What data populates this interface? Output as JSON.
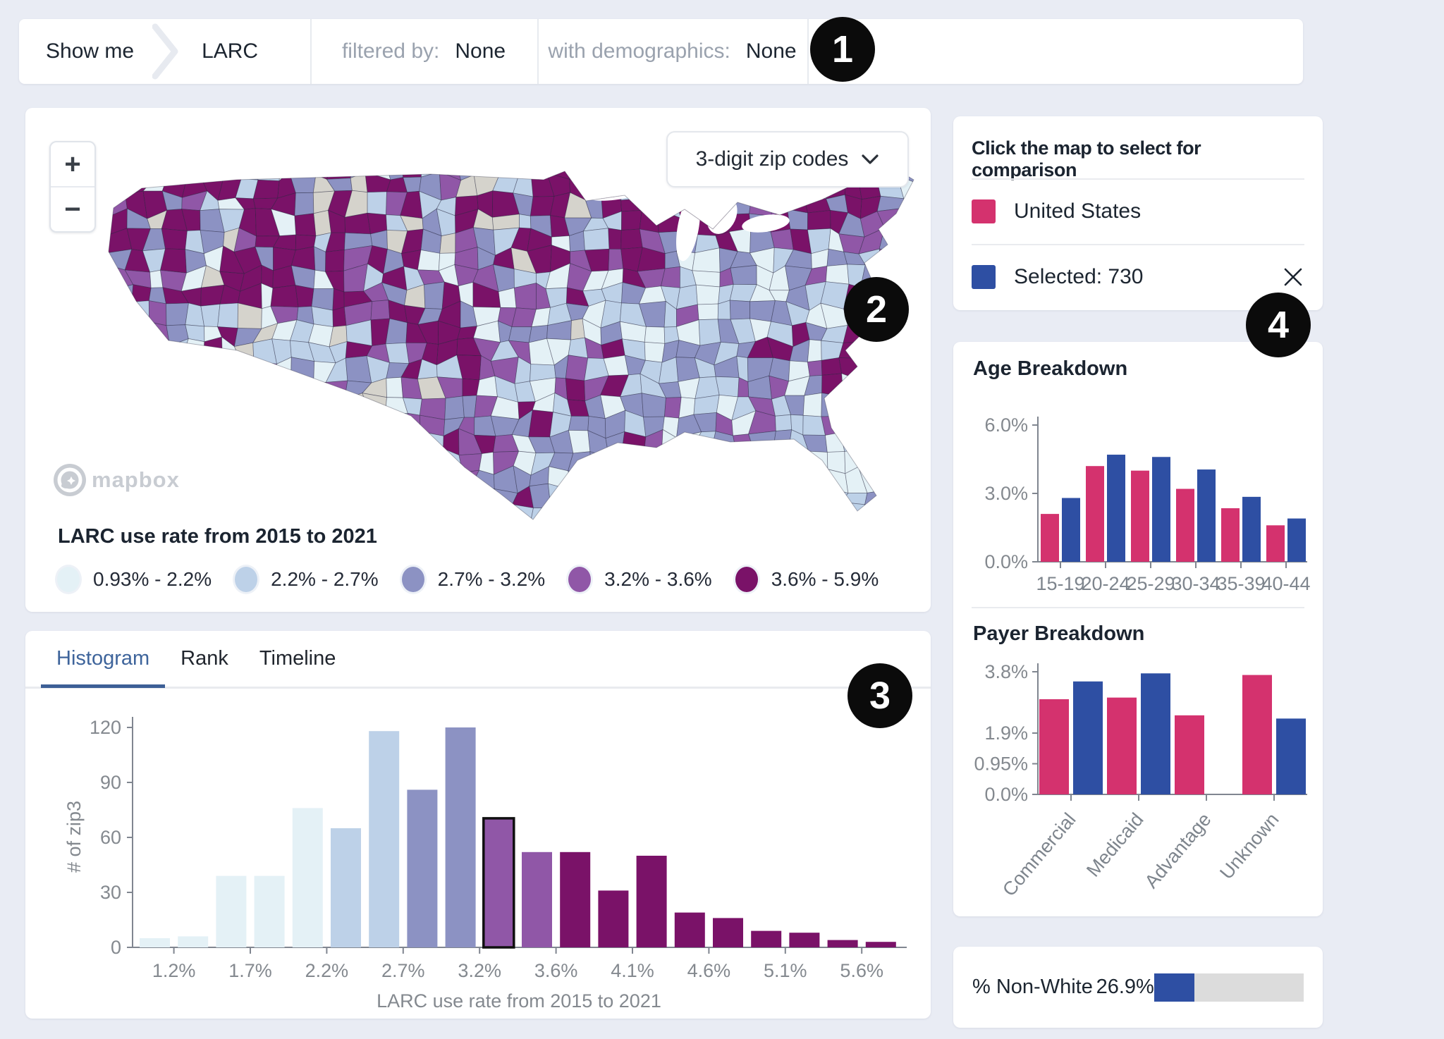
{
  "colors": {
    "background": "#E9ECF4",
    "pink": "#D4326E",
    "blue": "#2E4FA3",
    "tab_active_blue": "#3E649B",
    "dark_text": "#1C2530",
    "muted_text": "#9AA2AE",
    "axis_text": "#84898F",
    "bin_colors": [
      "#E4F1F6",
      "#BDD1E8",
      "#8C92C3",
      "#9057A7",
      "#7A1268"
    ],
    "nodata_gray": "#D5D3CC",
    "progress_track": "#DCDCDC",
    "annotation_bg": "#0B0B0B"
  },
  "annotations": {
    "one": "1",
    "two": "2",
    "three": "3",
    "four": "4"
  },
  "topbar": {
    "show_me": "Show me",
    "metric": "LARC",
    "filtered_by_label": "filtered by:",
    "filtered_by_value": "None",
    "with_demo_label": "with demographics:",
    "with_demo_value": "None"
  },
  "map_card": {
    "zoom_in_label": "+",
    "zoom_out_label": "−",
    "layer_selector_label": "3-digit zip codes",
    "attribution_label": "mapbox",
    "legend": {
      "title": "LARC use rate from 2015 to 2021",
      "bins": [
        {
          "label": "0.93% - 2.2%"
        },
        {
          "label": "2.2% - 2.7%"
        },
        {
          "label": "2.7% - 3.2%"
        },
        {
          "label": "3.2% - 3.6%"
        },
        {
          "label": "3.6% - 5.9%"
        }
      ]
    }
  },
  "histogram_card": {
    "tabs": [
      {
        "label": "Histogram",
        "active": true
      },
      {
        "label": "Rank",
        "active": false
      },
      {
        "label": "Timeline",
        "active": false
      }
    ]
  },
  "comparison_card": {
    "title": "Click the map to select for comparison",
    "rows": [
      {
        "name": "United States",
        "color": "#D4326E",
        "closable": false
      },
      {
        "name": "Selected: 730",
        "color": "#2E4FA3",
        "closable": true
      }
    ]
  },
  "breakdown_card": {
    "age_title": "Age Breakdown",
    "payer_title": "Payer Breakdown"
  },
  "nonwhite_card": {
    "label": "% Non-White",
    "value_text": "26.9%",
    "percent": 26.9
  },
  "chart_data": [
    {
      "type": "bar",
      "title": "Histogram of LARC use rate by 3-digit zip code",
      "xlabel": "LARC use rate from 2015 to 2021",
      "ylabel": "# of zip3",
      "x_tick_labels": [
        "1.2%",
        "1.7%",
        "2.2%",
        "2.7%",
        "3.2%",
        "3.6%",
        "4.1%",
        "4.6%",
        "5.1%",
        "5.6%"
      ],
      "y_ticks": [
        0,
        30,
        60,
        90,
        120
      ],
      "ylim": [
        0,
        124
      ],
      "values": [
        5,
        6,
        39,
        39,
        76,
        65,
        118,
        86,
        120,
        71,
        52,
        52,
        31,
        50,
        19,
        16,
        9,
        8,
        4,
        3
      ],
      "bar_color_bin": [
        0,
        0,
        0,
        0,
        0,
        1,
        1,
        2,
        2,
        3,
        3,
        4,
        4,
        4,
        4,
        4,
        4,
        4,
        4,
        4
      ],
      "selected_index": 9,
      "grid": false
    },
    {
      "type": "grouped_bar",
      "title": "Age Breakdown",
      "categories": [
        "15-19",
        "20-24",
        "25-29",
        "30-34",
        "35-39",
        "40-44"
      ],
      "y_ticks": [
        {
          "label": "6.0%",
          "value": 6.0
        },
        {
          "label": "3.0%",
          "value": 3.0
        },
        {
          "label": "0.0%",
          "value": 0.0
        }
      ],
      "ymax": 6.0,
      "rotate_labels": false,
      "series": [
        {
          "name": "United States",
          "color": "#D4326E",
          "values": [
            2.1,
            4.2,
            4.0,
            3.2,
            2.35,
            1.6
          ]
        },
        {
          "name": "Selected: 730",
          "color": "#2E4FA3",
          "values": [
            2.8,
            4.7,
            4.6,
            4.05,
            2.85,
            1.9
          ]
        }
      ]
    },
    {
      "type": "grouped_bar",
      "title": "Payer Breakdown",
      "categories": [
        "Commercial",
        "Medicaid",
        "Advantage",
        "Unknown"
      ],
      "y_ticks": [
        {
          "label": "3.8%",
          "value": 3.8
        },
        {
          "label": "1.9%",
          "value": 1.9
        },
        {
          "label": "0.95%",
          "value": 0.95
        },
        {
          "label": "0.0%",
          "value": 0.0
        }
      ],
      "ymax": 3.8,
      "rotate_labels": true,
      "series": [
        {
          "name": "United States",
          "color": "#D4326E",
          "values": [
            2.95,
            3.0,
            2.45,
            3.7
          ]
        },
        {
          "name": "Selected: 730",
          "color": "#2E4FA3",
          "values": [
            3.5,
            3.75,
            0,
            2.35
          ]
        }
      ]
    }
  ]
}
